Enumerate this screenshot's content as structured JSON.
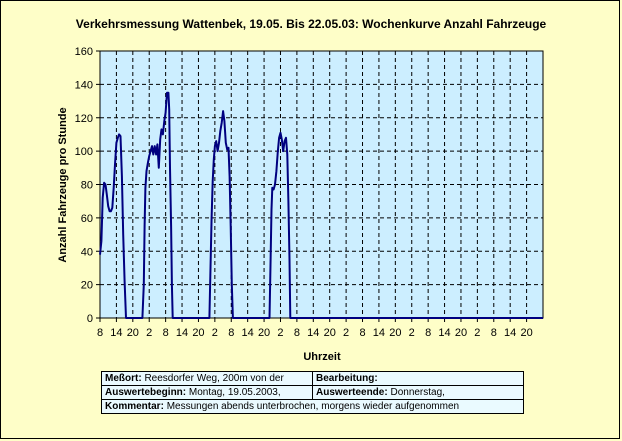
{
  "chart_data": {
    "type": "line",
    "title": "Verkehrsmessung Wattenbek, 19.05. Bis 22.05.03: Wochenkurve Anzahl Fahrzeuge",
    "xlabel": "Uhrzeit",
    "ylabel": "Anzahl Fahrzeuge pro Stunde",
    "ylim": [
      0,
      160
    ],
    "yticks": [
      0,
      20,
      40,
      60,
      80,
      100,
      120,
      140,
      160
    ],
    "x_range_hours": [
      0,
      162
    ],
    "x_tick_hours": [
      0,
      6,
      12,
      18,
      24,
      30,
      36,
      42,
      48,
      54,
      60,
      66,
      72,
      78,
      84,
      90,
      96,
      102,
      108,
      114,
      120,
      126,
      132,
      138,
      144,
      150,
      156
    ],
    "xtick_labels": [
      "8",
      "14",
      "20",
      "2",
      "8",
      "14",
      "20",
      "2",
      "8",
      "14",
      "20",
      "2",
      "8",
      "14",
      "20",
      "2",
      "8",
      "14",
      "20",
      "2",
      "8",
      "14",
      "20",
      "2",
      "8",
      "14",
      "20"
    ],
    "x_tick_label_indices": [
      0,
      1,
      2,
      3,
      4,
      5,
      6,
      7,
      8,
      9,
      10,
      11,
      12,
      13,
      14,
      15,
      16,
      17,
      18,
      19,
      20,
      21,
      22,
      23,
      24,
      25,
      26
    ],
    "grid": true,
    "series": [
      {
        "color": "#000080",
        "points": [
          [
            0,
            38
          ],
          [
            0.5,
            46
          ],
          [
            1,
            72
          ],
          [
            1.5,
            81
          ],
          [
            2,
            80
          ],
          [
            2.5,
            74
          ],
          [
            3,
            67
          ],
          [
            3.5,
            64
          ],
          [
            4,
            64
          ],
          [
            4.5,
            66
          ],
          [
            5,
            78
          ],
          [
            5.5,
            92
          ],
          [
            6,
            105
          ],
          [
            6.5,
            108
          ],
          [
            7,
            110
          ],
          [
            7.5,
            109
          ],
          [
            8,
            85
          ],
          [
            8.5,
            50
          ],
          [
            9,
            22
          ],
          [
            9.5,
            0
          ],
          [
            15.5,
            0
          ],
          [
            16,
            20
          ],
          [
            16.3,
            55
          ],
          [
            16.6,
            78
          ],
          [
            17,
            88
          ],
          [
            17.5,
            93
          ],
          [
            18,
            97
          ],
          [
            18.5,
            100
          ],
          [
            19,
            103
          ],
          [
            19.5,
            98
          ],
          [
            20,
            103
          ],
          [
            20.5,
            98
          ],
          [
            21,
            104
          ],
          [
            21.5,
            90
          ],
          [
            22,
            107
          ],
          [
            22.5,
            113
          ],
          [
            23,
            110
          ],
          [
            23.5,
            118
          ],
          [
            24,
            123
          ],
          [
            24.5,
            135
          ],
          [
            25,
            135
          ],
          [
            25.3,
            125
          ],
          [
            25.6,
            90
          ],
          [
            26,
            55
          ],
          [
            26.3,
            20
          ],
          [
            26.6,
            0
          ],
          [
            40,
            0
          ],
          [
            40.4,
            30
          ],
          [
            40.8,
            60
          ],
          [
            41.2,
            82
          ],
          [
            41.6,
            95
          ],
          [
            42,
            103
          ],
          [
            42.5,
            106
          ],
          [
            43,
            100
          ],
          [
            43.5,
            105
          ],
          [
            44,
            112
          ],
          [
            44.5,
            117
          ],
          [
            45,
            124
          ],
          [
            45.5,
            118
          ],
          [
            46,
            105
          ],
          [
            46.5,
            101
          ],
          [
            47,
            102
          ],
          [
            47.4,
            85
          ],
          [
            47.8,
            55
          ],
          [
            48.2,
            20
          ],
          [
            48.6,
            0
          ],
          [
            62,
            0
          ],
          [
            62.4,
            35
          ],
          [
            62.7,
            65
          ],
          [
            63,
            78
          ],
          [
            63.5,
            77
          ],
          [
            64,
            80
          ],
          [
            64.5,
            88
          ],
          [
            65,
            99
          ],
          [
            65.5,
            108
          ],
          [
            66,
            111
          ],
          [
            66.5,
            107
          ],
          [
            67,
            100
          ],
          [
            67.5,
            106
          ],
          [
            68,
            108
          ],
          [
            68.5,
            98
          ],
          [
            68.9,
            70
          ],
          [
            69.3,
            35
          ],
          [
            69.6,
            0
          ],
          [
            162,
            0
          ]
        ]
      }
    ]
  },
  "info_table": {
    "messort_label": "Meßort:",
    "messort_value": "Reesdorfer Weg, 200m von der",
    "bearbeitung_label": "Bearbeitung:",
    "beginn_label": "Auswertebeginn:",
    "beginn_value": "Montag, 19.05.2003,",
    "ende_label": "Auswerteende:",
    "ende_value": "Donnerstag,",
    "kommentar_label": "Kommentar:",
    "kommentar_value": "Messungen abends unterbrochen, morgens wieder aufgenommen"
  }
}
